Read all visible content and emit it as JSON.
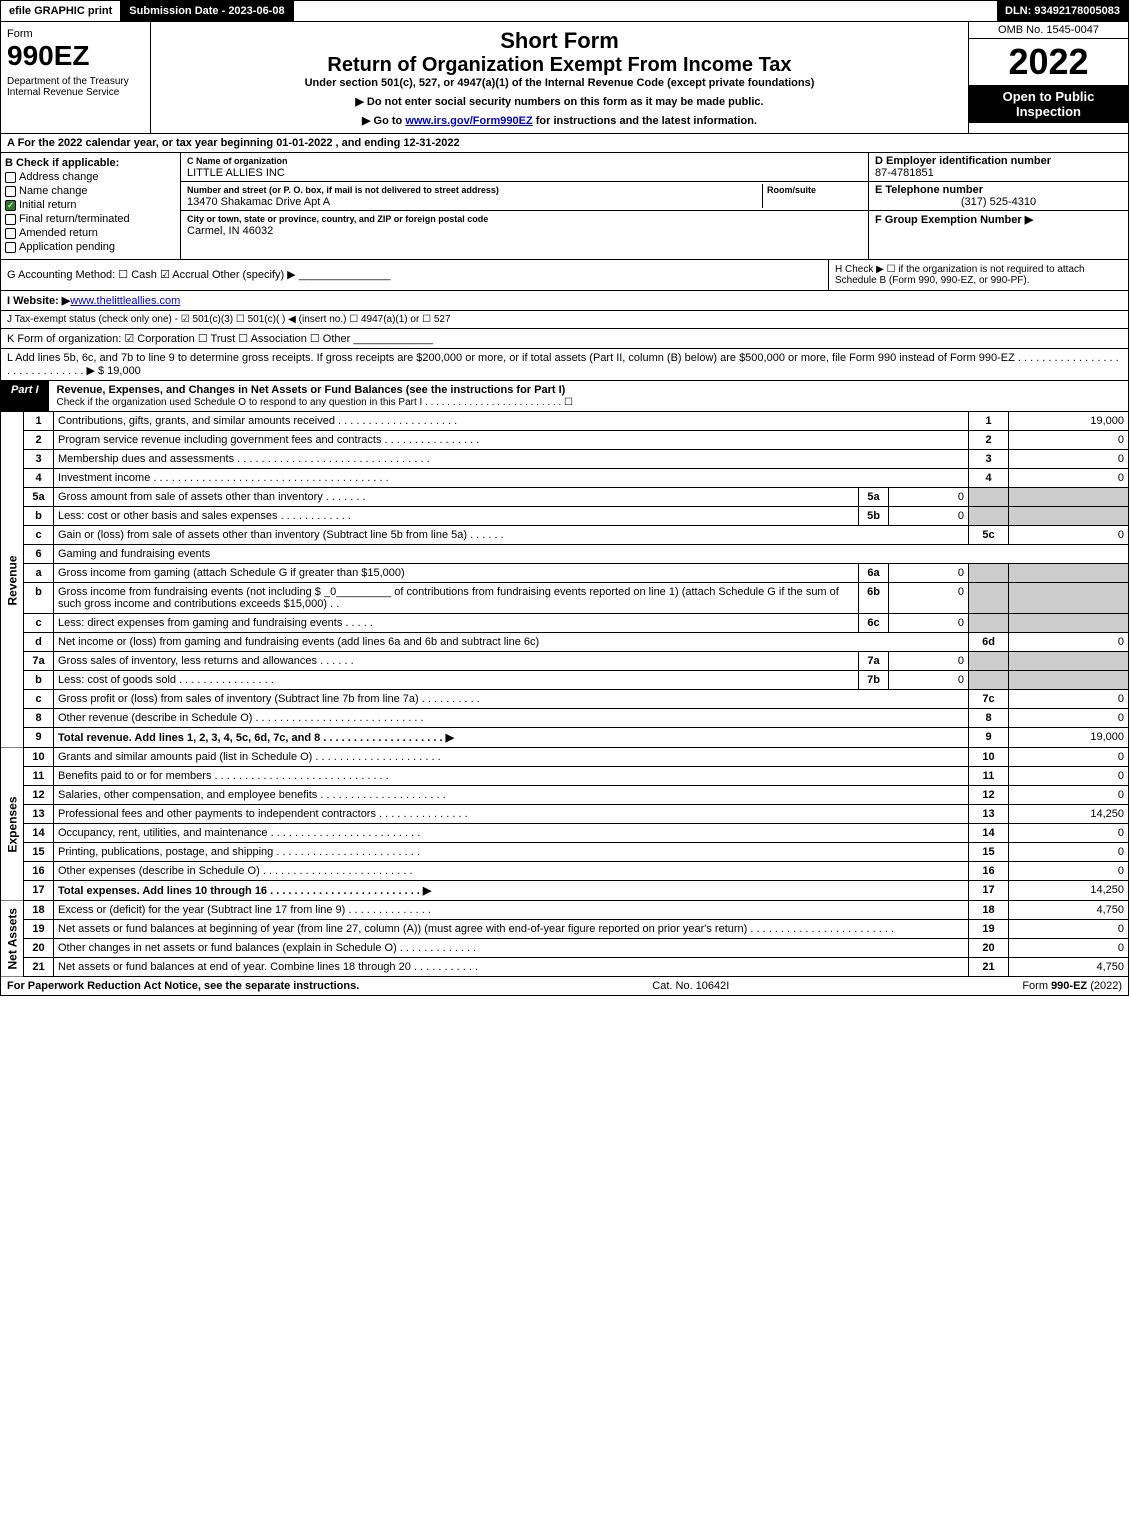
{
  "topbar": {
    "efile": "efile GRAPHIC print",
    "subdate_label": "Submission Date - 2023-06-08",
    "dln": "DLN: 93492178005083"
  },
  "header": {
    "form_label": "Form",
    "form_no": "990EZ",
    "dept": "Department of the Treasury\nInternal Revenue Service",
    "short": "Short Form",
    "return_title": "Return of Organization Exempt From Income Tax",
    "under": "Under section 501(c), 527, or 4947(a)(1) of the Internal Revenue Code (except private foundations)",
    "note1": "▶ Do not enter social security numbers on this form as it may be made public.",
    "note2_pre": "▶ Go to ",
    "note2_link": "www.irs.gov/Form990EZ",
    "note2_post": " for instructions and the latest information.",
    "omb": "OMB No. 1545-0047",
    "year": "2022",
    "open": "Open to Public Inspection"
  },
  "line_a": "A  For the 2022 calendar year, or tax year beginning 01-01-2022 , and ending 12-31-2022",
  "section_b": {
    "title": "B  Check if applicable:",
    "items": [
      "Address change",
      "Name change",
      "Initial return",
      "Final return/terminated",
      "Amended return",
      "Application pending"
    ],
    "checked_index": 2
  },
  "section_c": {
    "name_lbl": "C Name of organization",
    "name": "LITTLE ALLIES INC",
    "addr_lbl": "Number and street (or P. O. box, if mail is not delivered to street address)",
    "room_lbl": "Room/suite",
    "addr": "13470 Shakamac Drive Apt A",
    "city_lbl": "City or town, state or province, country, and ZIP or foreign postal code",
    "city": "Carmel, IN  46032"
  },
  "section_d": {
    "lbl": "D Employer identification number",
    "val": "87-4781851"
  },
  "section_e": {
    "lbl": "E Telephone number",
    "val": "(317) 525-4310"
  },
  "section_f": {
    "lbl": "F Group Exemption Number  ▶",
    "val": ""
  },
  "line_g": "G Accounting Method:   ☐ Cash   ☑ Accrual   Other (specify) ▶ _______________",
  "line_h": "H  Check ▶  ☐  if the organization is not required to attach Schedule B (Form 990, 990-EZ, or 990-PF).",
  "line_i_pre": "I Website: ▶",
  "line_i_link": "www.thelittleallies.com",
  "line_j": "J Tax-exempt status (check only one) - ☑ 501(c)(3) ☐ 501(c)(  ) ◀ (insert no.) ☐ 4947(a)(1) or ☐ 527",
  "line_k": "K Form of organization:  ☑ Corporation  ☐ Trust  ☐ Association  ☐ Other  _____________",
  "line_l": {
    "text": "L Add lines 5b, 6c, and 7b to line 9 to determine gross receipts. If gross receipts are $200,000 or more, or if total assets (Part II, column (B) below) are $500,000 or more, file Form 990 instead of Form 990-EZ . . . . . . . . . . . . . . . . . . . . . . . . . . . . . . ▶",
    "amt": "$ 19,000"
  },
  "part1": {
    "tab": "Part I",
    "title": "Revenue, Expenses, and Changes in Net Assets or Fund Balances (see the instructions for Part I)",
    "check_line": "Check if the organization used Schedule O to respond to any question in this Part I . . . . . . . . . . . . . . . . . . . . . . . . .  ☐"
  },
  "sections": {
    "revenue": "Revenue",
    "expenses": "Expenses",
    "netassets": "Net Assets"
  },
  "rows": [
    {
      "n": "1",
      "d": "Contributions, gifts, grants, and similar amounts received . . . . . . . . . . . . . . . . . . . .",
      "box": "1",
      "amt": "19,000"
    },
    {
      "n": "2",
      "d": "Program service revenue including government fees and contracts . . . . . . . . . . . . . . . .",
      "box": "2",
      "amt": "0"
    },
    {
      "n": "3",
      "d": "Membership dues and assessments . . . . . . . . . . . . . . . . . . . . . . . . . . . . . . . .",
      "box": "3",
      "amt": "0"
    },
    {
      "n": "4",
      "d": "Investment income . . . . . . . . . . . . . . . . . . . . . . . . . . . . . . . . . . . . . . .",
      "box": "4",
      "amt": "0"
    },
    {
      "n": "5a",
      "d": "Gross amount from sale of assets other than inventory . . . . . . .",
      "sub": "5a",
      "subamt": "0"
    },
    {
      "n": "b",
      "d": "Less: cost or other basis and sales expenses . . . . . . . . . . . .",
      "sub": "5b",
      "subamt": "0"
    },
    {
      "n": "c",
      "d": "Gain or (loss) from sale of assets other than inventory (Subtract line 5b from line 5a) . . . . . .",
      "box": "5c",
      "amt": "0"
    },
    {
      "n": "6",
      "d": "Gaming and fundraising events"
    },
    {
      "n": "a",
      "d": "Gross income from gaming (attach Schedule G if greater than $15,000)",
      "sub": "6a",
      "subamt": "0"
    },
    {
      "n": "b",
      "d": "Gross income from fundraising events (not including $ _0_________ of contributions from fundraising events reported on line 1) (attach Schedule G if the sum of such gross income and contributions exceeds $15,000)  . .",
      "sub": "6b",
      "subamt": "0"
    },
    {
      "n": "c",
      "d": "Less: direct expenses from gaming and fundraising events . . . . .",
      "sub": "6c",
      "subamt": "0"
    },
    {
      "n": "d",
      "d": "Net income or (loss) from gaming and fundraising events (add lines 6a and 6b and subtract line 6c)",
      "box": "6d",
      "amt": "0"
    },
    {
      "n": "7a",
      "d": "Gross sales of inventory, less returns and allowances . . . . . .",
      "sub": "7a",
      "subamt": "0"
    },
    {
      "n": "b",
      "d": "Less: cost of goods sold      . . . . . . . . . . . . . . . .",
      "sub": "7b",
      "subamt": "0"
    },
    {
      "n": "c",
      "d": "Gross profit or (loss) from sales of inventory (Subtract line 7b from line 7a) . . . . . . . . . .",
      "box": "7c",
      "amt": "0"
    },
    {
      "n": "8",
      "d": "Other revenue (describe in Schedule O) . . . . . . . . . . . . . . . . . . . . . . . . . . . .",
      "box": "8",
      "amt": "0"
    },
    {
      "n": "9",
      "d": "Total revenue. Add lines 1, 2, 3, 4, 5c, 6d, 7c, and 8  . . . . . . . . . . . . . . . . . . . .  ▶",
      "box": "9",
      "amt": "19,000",
      "bold": true
    }
  ],
  "exp_rows": [
    {
      "n": "10",
      "d": "Grants and similar amounts paid (list in Schedule O) . . . . . . . . . . . . . . . . . . . . .",
      "box": "10",
      "amt": "0"
    },
    {
      "n": "11",
      "d": "Benefits paid to or for members    . . . . . . . . . . . . . . . . . . . . . . . . . . . . .",
      "box": "11",
      "amt": "0"
    },
    {
      "n": "12",
      "d": "Salaries, other compensation, and employee benefits . . . . . . . . . . . . . . . . . . . . .",
      "box": "12",
      "amt": "0"
    },
    {
      "n": "13",
      "d": "Professional fees and other payments to independent contractors . . . . . . . . . . . . . . .",
      "box": "13",
      "amt": "14,250"
    },
    {
      "n": "14",
      "d": "Occupancy, rent, utilities, and maintenance . . . . . . . . . . . . . . . . . . . . . . . . .",
      "box": "14",
      "amt": "0"
    },
    {
      "n": "15",
      "d": "Printing, publications, postage, and shipping . . . . . . . . . . . . . . . . . . . . . . . .",
      "box": "15",
      "amt": "0"
    },
    {
      "n": "16",
      "d": "Other expenses (describe in Schedule O)    . . . . . . . . . . . . . . . . . . . . . . . . .",
      "box": "16",
      "amt": "0"
    },
    {
      "n": "17",
      "d": "Total expenses. Add lines 10 through 16   . . . . . . . . . . . . . . . . . . . . . . . . .  ▶",
      "box": "17",
      "amt": "14,250",
      "bold": true
    }
  ],
  "net_rows": [
    {
      "n": "18",
      "d": "Excess or (deficit) for the year (Subtract line 17 from line 9)      . . . . . . . . . . . . . .",
      "box": "18",
      "amt": "4,750"
    },
    {
      "n": "19",
      "d": "Net assets or fund balances at beginning of year (from line 27, column (A)) (must agree with end-of-year figure reported on prior year's return) . . . . . . . . . . . . . . . . . . . . . . . .",
      "box": "19",
      "amt": "0"
    },
    {
      "n": "20",
      "d": "Other changes in net assets or fund balances (explain in Schedule O) . . . . . . . . . . . . .",
      "box": "20",
      "amt": "0"
    },
    {
      "n": "21",
      "d": "Net assets or fund balances at end of year. Combine lines 18 through 20 . . . . . . . . . . .",
      "box": "21",
      "amt": "4,750"
    }
  ],
  "footer": {
    "l": "For Paperwork Reduction Act Notice, see the separate instructions.",
    "c": "Cat. No. 10642I",
    "r": "Form 990-EZ (2022)"
  }
}
